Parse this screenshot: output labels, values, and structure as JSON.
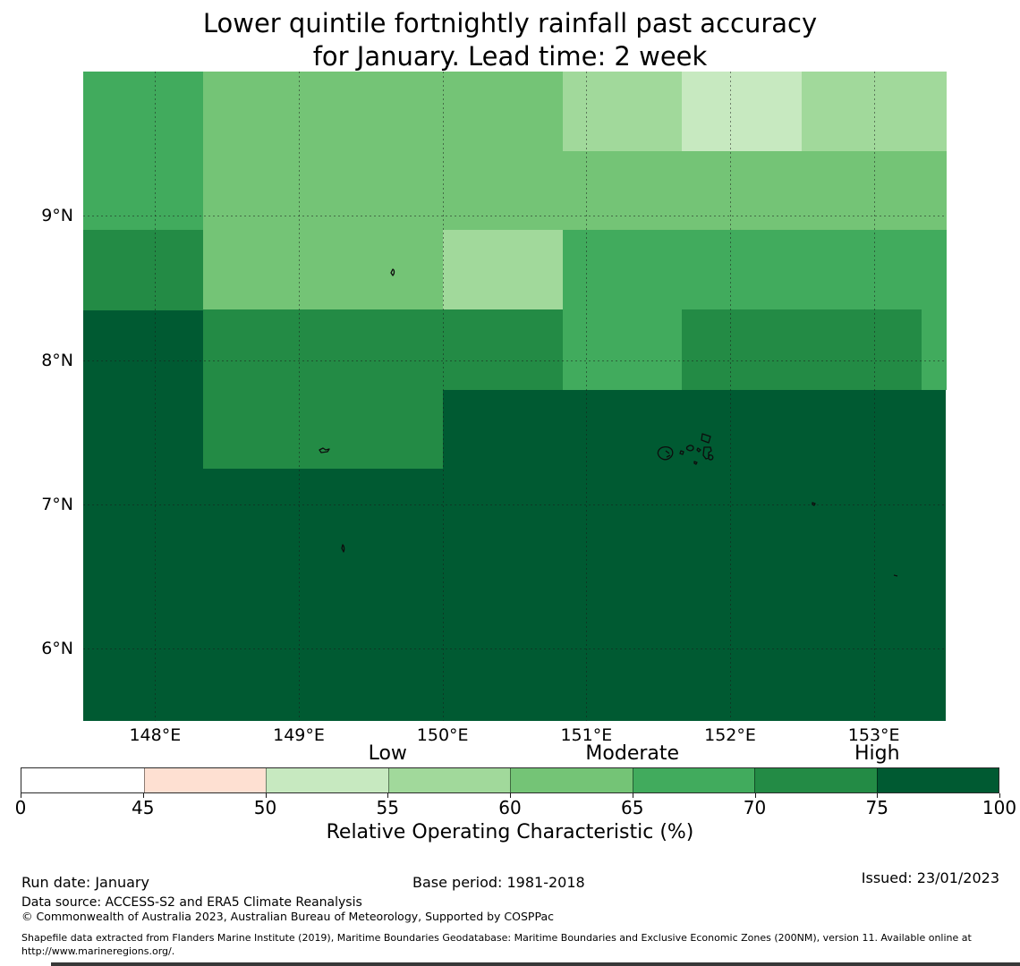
{
  "title": {
    "line1": "Lower quintile fortnightly rainfall past accuracy",
    "line2": "for January. Lead time: 2 week"
  },
  "footer": {
    "run_date": "Run date: January",
    "base_period": "Base period: 1981-2018",
    "issued": "Issued: 23/01/2023",
    "data_source": "Data source: ACCESS-S2 and ERA5 Climate Reanalysis",
    "copyright": "© Commonwealth of Australia 2023, Australian Bureau of Meteorology, Supported by COSPPac",
    "shapefile_note": "Shapefile data extracted from Flanders Marine Institute (2019), Maritime Boundaries Geodatabase: Maritime Boundaries and Exclusive Economic Zones (200NM), version 11. Available online at http://www.marineregions.org/."
  },
  "chart_data": {
    "type": "heatmap",
    "title": "Lower quintile fortnightly rainfall past accuracy for January. Lead time: 2 week",
    "lon_range": [
      147.5,
      153.5
    ],
    "lat_range": [
      5.5,
      10.0
    ],
    "grid_on": true,
    "x_ticks": [
      {
        "label": "148°E",
        "lon": 148
      },
      {
        "label": "149°E",
        "lon": 149
      },
      {
        "label": "150°E",
        "lon": 150
      },
      {
        "label": "151°E",
        "lon": 151
      },
      {
        "label": "152°E",
        "lon": 152
      },
      {
        "label": "153°E",
        "lon": 153
      }
    ],
    "y_ticks": [
      {
        "label": "9°N",
        "lat": 9
      },
      {
        "label": "8°N",
        "lat": 8
      },
      {
        "label": "7°N",
        "lat": 7
      },
      {
        "label": "6°N",
        "lat": 6
      }
    ],
    "base_region": {
      "roc_pct": "75-100",
      "color": "#005a32",
      "note": "all remaining map area"
    },
    "regions": [
      {
        "lon": [
          147.5,
          148.333
        ],
        "lat": [
          8.9,
          10.0
        ],
        "roc_pct": "65-70",
        "color": "#41ab5d"
      },
      {
        "lon": [
          148.333,
          150.0
        ],
        "lat": [
          8.35,
          10.0
        ],
        "roc_pct": "60-65",
        "color": "#74c476"
      },
      {
        "lon": [
          150.0,
          150.833
        ],
        "lat": [
          8.9,
          10.0
        ],
        "roc_pct": "60-65",
        "color": "#74c476"
      },
      {
        "lon": [
          150.833,
          151.667
        ],
        "lat": [
          9.45,
          10.0
        ],
        "roc_pct": "55-60",
        "color": "#a1d99b"
      },
      {
        "lon": [
          151.667,
          152.5
        ],
        "lat": [
          9.45,
          10.0
        ],
        "roc_pct": "50-55",
        "color": "#c7e9c0"
      },
      {
        "lon": [
          152.5,
          153.5
        ],
        "lat": [
          9.45,
          10.0
        ],
        "roc_pct": "55-60",
        "color": "#a1d99b"
      },
      {
        "lon": [
          150.833,
          153.5
        ],
        "lat": [
          8.9,
          9.45
        ],
        "roc_pct": "60-65",
        "color": "#74c476"
      },
      {
        "lon": [
          147.5,
          148.333
        ],
        "lat": [
          8.35,
          8.9
        ],
        "roc_pct": "70-75",
        "color": "#238b45"
      },
      {
        "lon": [
          150.0,
          150.833
        ],
        "lat": [
          8.35,
          8.9
        ],
        "roc_pct": "55-60",
        "color": "#a1d99b"
      },
      {
        "lon": [
          150.833,
          153.5
        ],
        "lat": [
          8.35,
          8.9
        ],
        "roc_pct": "65-70",
        "color": "#41ab5d"
      },
      {
        "lon": [
          148.333,
          150.0
        ],
        "lat": [
          7.25,
          8.35
        ],
        "roc_pct": "70-75",
        "color": "#238b45"
      },
      {
        "lon": [
          150.0,
          150.833
        ],
        "lat": [
          7.8,
          8.35
        ],
        "roc_pct": "70-75",
        "color": "#238b45"
      },
      {
        "lon": [
          150.833,
          151.667
        ],
        "lat": [
          7.8,
          8.35
        ],
        "roc_pct": "65-70",
        "color": "#41ab5d"
      },
      {
        "lon": [
          151.667,
          153.333
        ],
        "lat": [
          7.8,
          8.35
        ],
        "roc_pct": "70-75",
        "color": "#238b45"
      },
      {
        "lon": [
          153.333,
          153.5
        ],
        "lat": [
          7.8,
          8.35
        ],
        "roc_pct": "65-70",
        "color": "#41ab5d"
      }
    ],
    "colorbar": {
      "label": "Relative Operating Characteristic (%)",
      "boundaries": [
        0,
        45,
        50,
        55,
        60,
        65,
        70,
        75,
        100
      ],
      "colors": [
        "#ffffff",
        "#fee0d2",
        "#c7e9c0",
        "#a1d99b",
        "#74c476",
        "#41ab5d",
        "#238b45",
        "#005a32"
      ],
      "spacing": "uniform",
      "category_labels": [
        {
          "label": "Low",
          "at": 55
        },
        {
          "label": "Moderate",
          "at": 65
        },
        {
          "label": "High",
          "at": 75
        }
      ]
    }
  }
}
